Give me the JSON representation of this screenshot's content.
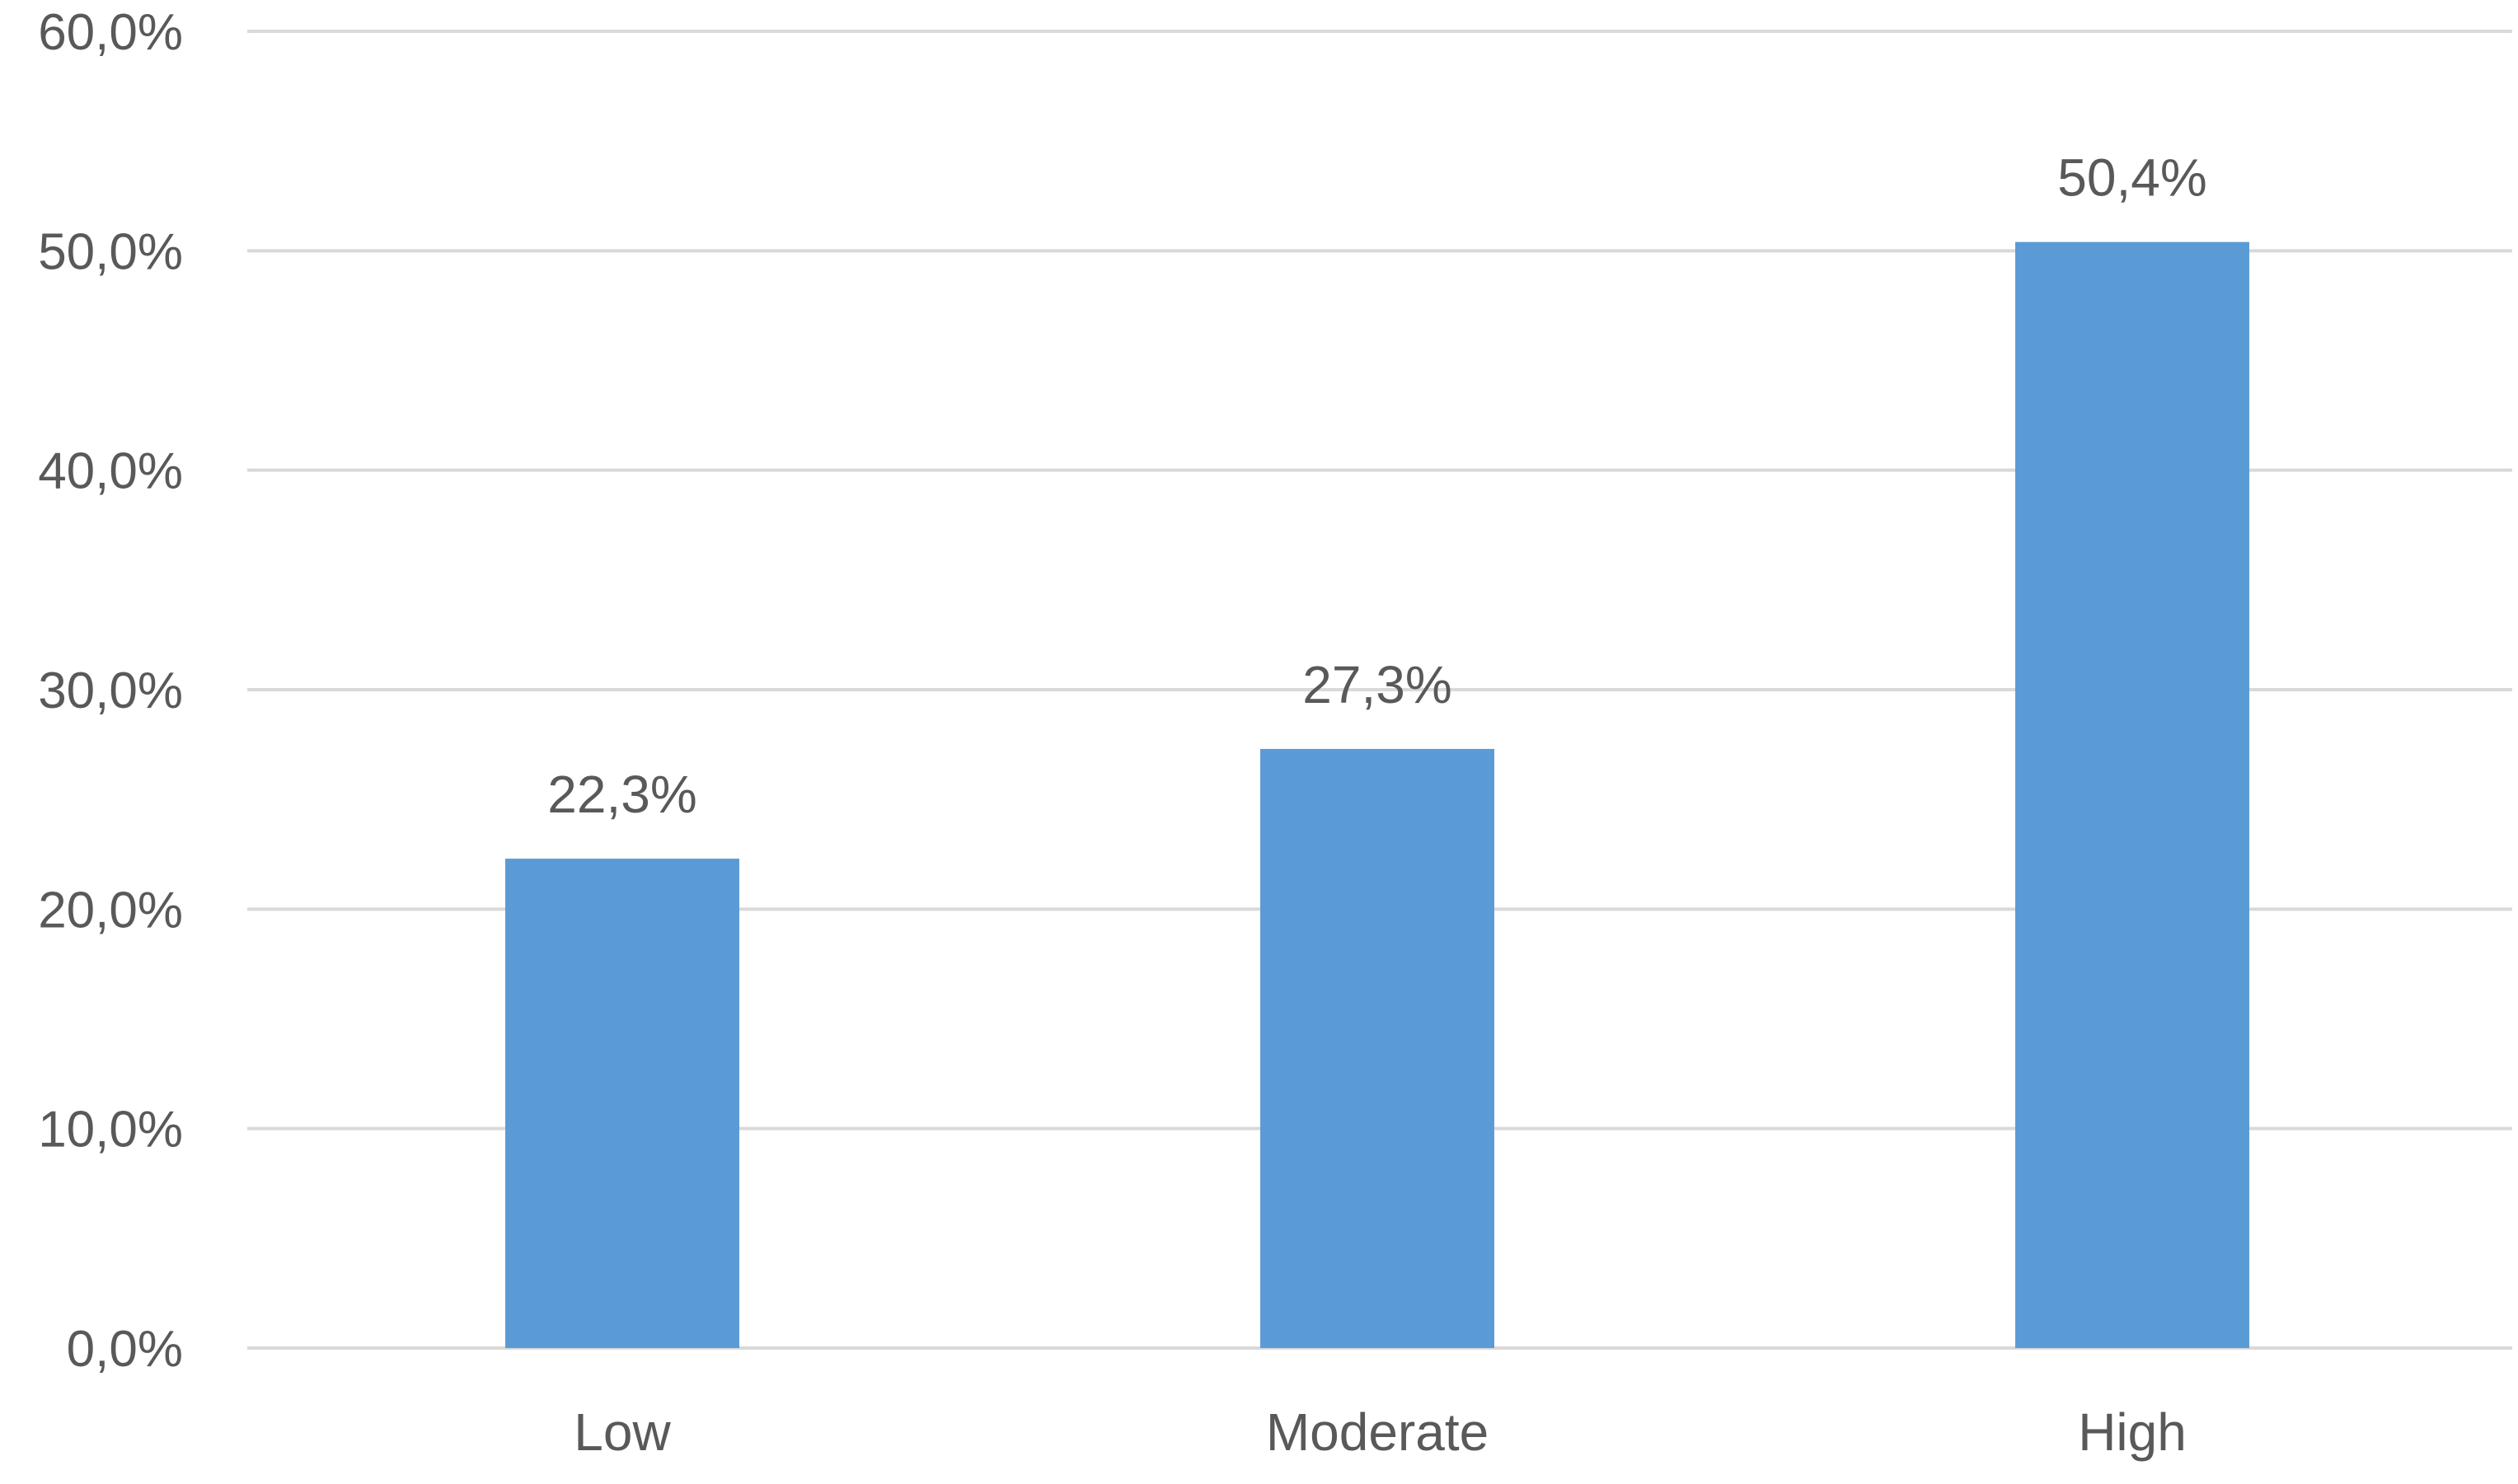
{
  "chart_data": {
    "type": "bar",
    "categories": [
      "Low",
      "Moderate",
      "High"
    ],
    "values": [
      22.3,
      27.3,
      50.4
    ],
    "data_labels": [
      "22,3%",
      "27,3%",
      "50,4%"
    ],
    "ylim": [
      0,
      60
    ],
    "yticks": [
      0,
      10,
      20,
      30,
      40,
      50,
      60
    ],
    "ytick_labels": [
      "0,0%",
      "10,0%",
      "20,0%",
      "30,0%",
      "40,0%",
      "50,0%",
      "60,0%"
    ],
    "grid": true,
    "legend": "none",
    "bar_color": "#5b9bd5",
    "title": "",
    "xlabel": "",
    "ylabel": ""
  }
}
